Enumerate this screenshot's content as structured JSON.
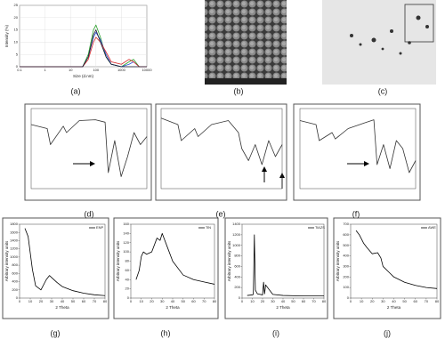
{
  "panel_labels": [
    "(a)",
    "(b)",
    "(c)",
    "(d)",
    "(e)",
    "(f)",
    "(g)",
    "(h)",
    "(i)",
    "(j)"
  ],
  "chart_data": [
    {
      "type": "line",
      "x_log": true,
      "ylabel": "Intensity (%)",
      "xlabel": "Size (d.nm)",
      "x": [
        0.1,
        30,
        50,
        80,
        100,
        150,
        250,
        400,
        1000,
        2000,
        3000,
        5000,
        10000
      ],
      "xlim": [
        0.1,
        10000
      ],
      "xticks": [
        0.1,
        1,
        10,
        100,
        1000,
        10000
      ],
      "ylim": [
        0,
        25
      ],
      "yticks": [
        0,
        5,
        10,
        15,
        20,
        25
      ],
      "grid": true,
      "legend": false,
      "series": [
        {
          "color": "#2ca02c",
          "values": [
            0,
            0,
            5,
            15,
            17,
            12,
            4,
            1,
            0,
            2,
            3,
            0,
            0
          ]
        },
        {
          "color": "#2b50d8",
          "values": [
            0,
            0,
            4,
            12,
            14,
            11,
            5,
            1,
            0,
            1,
            2,
            0,
            0
          ]
        },
        {
          "color": "#d62728",
          "values": [
            0,
            0,
            3,
            10,
            12,
            10,
            6,
            2,
            1,
            3,
            2,
            0,
            0
          ]
        },
        {
          "color": "#1a1a2e",
          "values": [
            0,
            0,
            4,
            13,
            15,
            10,
            4,
            1,
            0,
            0,
            0,
            0,
            0
          ]
        }
      ]
    },
    {
      "type": "line",
      "x": [
        4000,
        3500,
        3400,
        3000,
        2900,
        2500,
        2000,
        1700,
        1600,
        1400,
        1200,
        1000,
        800,
        600,
        400
      ],
      "xlim": [
        4000,
        400
      ],
      "ylim": [
        0,
        100
      ],
      "legend": false,
      "series": [
        {
          "color": "#333",
          "values": [
            80,
            75,
            55,
            78,
            70,
            85,
            86,
            83,
            20,
            60,
            15,
            40,
            70,
            55,
            65
          ]
        }
      ]
    },
    {
      "type": "line",
      "x": [
        4000,
        3500,
        3400,
        3000,
        2900,
        2500,
        2000,
        1700,
        1600,
        1400,
        1200,
        1000,
        800,
        600,
        400
      ],
      "xlim": [
        4000,
        400
      ],
      "ylim": [
        0,
        100
      ],
      "legend": false,
      "series": [
        {
          "color": "#333",
          "values": [
            88,
            80,
            60,
            75,
            65,
            80,
            85,
            70,
            50,
            35,
            55,
            30,
            60,
            40,
            55
          ]
        }
      ]
    },
    {
      "type": "line",
      "x": [
        4000,
        3500,
        3400,
        3000,
        2900,
        2500,
        2000,
        1700,
        1600,
        1400,
        1200,
        1000,
        800,
        600,
        400
      ],
      "xlim": [
        4000,
        400
      ],
      "ylim": [
        0,
        100
      ],
      "legend": false,
      "series": [
        {
          "color": "#333",
          "values": [
            85,
            80,
            60,
            70,
            62,
            75,
            82,
            86,
            30,
            55,
            25,
            60,
            50,
            20,
            35
          ]
        }
      ]
    },
    {
      "type": "line",
      "ylabel": "Arbitrary intensity units",
      "xlabel": "2 Theta",
      "x": [
        5,
        8,
        10,
        12,
        15,
        20,
        25,
        28,
        30,
        35,
        40,
        50,
        60,
        70,
        80
      ],
      "xlim": [
        0,
        80
      ],
      "xticks": [
        0,
        10,
        20,
        30,
        40,
        50,
        60,
        70,
        80
      ],
      "ylim": [
        0,
        1800
      ],
      "yticks": [
        0,
        200,
        400,
        600,
        800,
        1000,
        1200,
        1400,
        1600,
        1800
      ],
      "legend": true,
      "series": [
        {
          "name": "ENP",
          "color": "#000",
          "values": [
            1700,
            1500,
            1100,
            700,
            300,
            200,
            450,
            550,
            500,
            380,
            280,
            180,
            120,
            80,
            60
          ]
        }
      ]
    },
    {
      "type": "line",
      "ylabel": "Arbitrary intensity units",
      "xlabel": "2 Theta",
      "x": [
        5,
        8,
        10,
        12,
        15,
        20,
        25,
        28,
        30,
        35,
        40,
        50,
        60,
        70,
        80
      ],
      "xlim": [
        0,
        80
      ],
      "xticks": [
        0,
        10,
        20,
        30,
        40,
        50,
        60,
        70,
        80
      ],
      "ylim": [
        0,
        160
      ],
      "yticks": [
        0,
        20,
        40,
        60,
        80,
        100,
        120,
        140,
        160
      ],
      "legend": true,
      "series": [
        {
          "name": "TiN",
          "color": "#000",
          "values": [
            40,
            60,
            90,
            100,
            95,
            100,
            130,
            125,
            140,
            110,
            80,
            50,
            40,
            35,
            30
          ]
        }
      ]
    },
    {
      "type": "line",
      "ylabel": "Arbitrary intensity units",
      "xlabel": "2 Theta",
      "x": [
        5,
        10,
        11,
        12,
        13,
        15,
        20,
        21,
        22,
        23,
        30,
        40,
        60,
        80
      ],
      "xlim": [
        0,
        80
      ],
      "xticks": [
        0,
        10,
        20,
        30,
        40,
        50,
        60,
        70,
        80
      ],
      "ylim": [
        0,
        1400
      ],
      "yticks": [
        0,
        200,
        400,
        600,
        800,
        1000,
        1200,
        1400
      ],
      "legend": true,
      "series": [
        {
          "name": "TiAZS",
          "color": "#000",
          "values": [
            50,
            60,
            70,
            1200,
            150,
            80,
            60,
            300,
            80,
            250,
            70,
            50,
            40,
            40
          ]
        }
      ]
    },
    {
      "type": "line",
      "ylabel": "Arbitrary intensity units",
      "xlabel": "2 Theta",
      "x": [
        5,
        8,
        10,
        12,
        15,
        20,
        25,
        28,
        30,
        35,
        40,
        50,
        60,
        70,
        80
      ],
      "xlim": [
        0,
        80
      ],
      "xticks": [
        0,
        10,
        20,
        30,
        40,
        50,
        60,
        70,
        80
      ],
      "ylim": [
        0,
        700
      ],
      "yticks": [
        0,
        100,
        200,
        300,
        400,
        500,
        600,
        700
      ],
      "legend": true,
      "series": [
        {
          "name": "AWE",
          "color": "#000",
          "values": [
            640,
            600,
            560,
            520,
            480,
            420,
            430,
            380,
            300,
            250,
            200,
            150,
            120,
            100,
            90
          ]
        }
      ]
    }
  ]
}
